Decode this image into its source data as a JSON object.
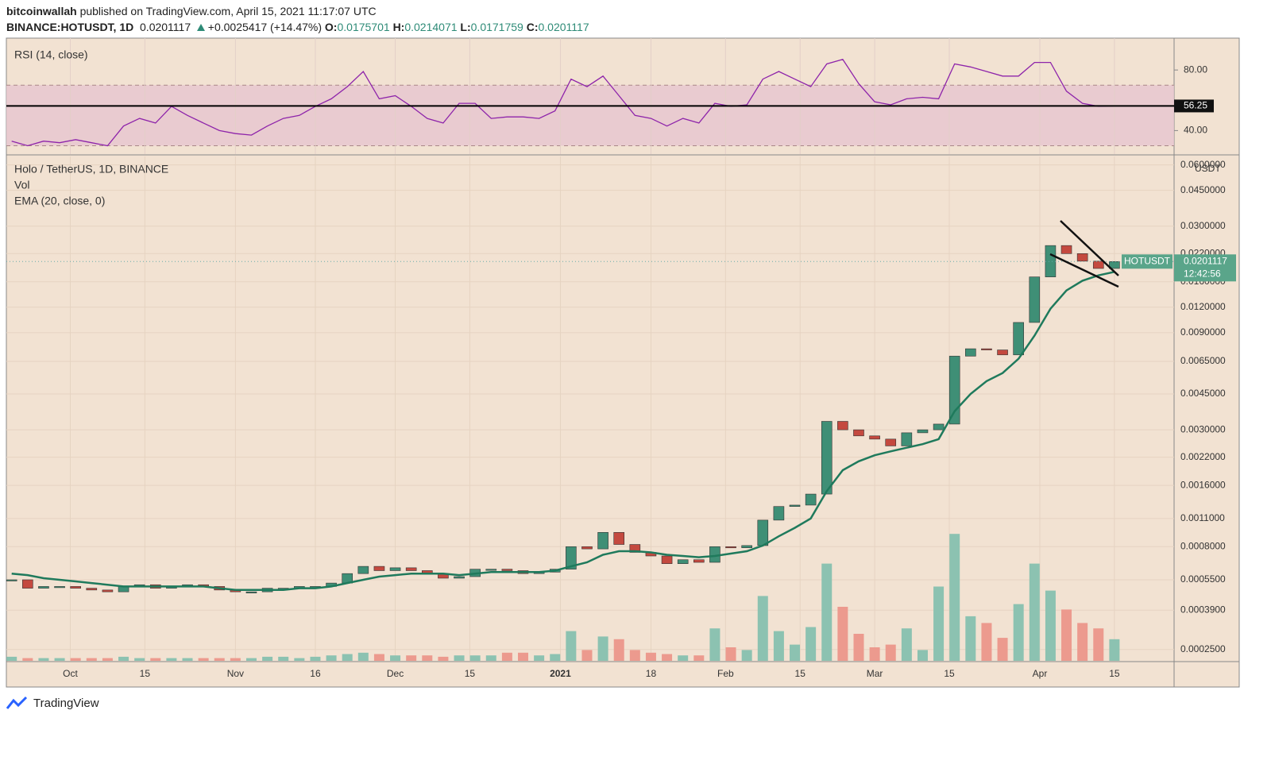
{
  "header": {
    "publisher": "bitcoinwallah",
    "published": "published on TradingView.com, April 15, 2021 11:17:07 UTC",
    "symbol": "BINANCE:HOTUSDT, 1D",
    "change": "+0.0025417 (+14.47%)",
    "open_label": "O:",
    "open": 0.0175701,
    "high_label": "H:",
    "high": 0.0214071,
    "low_label": "L:",
    "low": 0.0171759,
    "close_label": "C:"
  },
  "footer": {
    "brand": "TradingView"
  },
  "chart_data": [
    {
      "type": "line",
      "title": "RSI (14, close)",
      "color": "#8e24aa",
      "x": [
        1,
        4,
        7,
        10,
        13,
        16,
        19,
        22,
        25,
        28,
        31,
        34,
        37,
        40,
        43,
        46,
        49,
        52,
        55,
        58,
        61,
        64,
        67,
        70,
        73,
        76,
        79,
        82,
        85,
        88,
        91,
        94,
        97,
        100,
        103,
        106,
        109,
        112,
        115,
        118,
        121,
        124,
        127,
        130,
        133,
        136,
        139,
        142,
        145,
        148,
        151,
        154,
        157,
        160,
        163,
        166,
        169,
        172,
        175,
        178,
        181,
        184,
        187,
        190,
        193,
        196,
        199,
        202,
        205,
        208
      ],
      "values": [
        33,
        30,
        33,
        32,
        34,
        32,
        30,
        43,
        48,
        45,
        56,
        50,
        45,
        40,
        38,
        37,
        43,
        48,
        50,
        56,
        61,
        69,
        79,
        61,
        63,
        56,
        48,
        45,
        58,
        58,
        48,
        49,
        49,
        48,
        53,
        74,
        69,
        76,
        63,
        50,
        48,
        43,
        48,
        45,
        58,
        56,
        57,
        74,
        79,
        74,
        69,
        84,
        87,
        71,
        59,
        57,
        61,
        62,
        61,
        84,
        82,
        79,
        76,
        76,
        85,
        85,
        66,
        58,
        56,
        56.25
      ],
      "xlim": [
        0,
        219.2
      ],
      "ylim": [
        25,
        100
      ],
      "yticks": [
        {
          "value": 40,
          "label": "40.00"
        },
        {
          "value": 80,
          "label": "80.00"
        }
      ],
      "band": [
        30,
        70
      ],
      "band_color": "#e6c6cf"
    },
    {
      "type": "candlestick",
      "title": "Holo / TetherUS, 1D, BINANCE",
      "symbol": "HOTUSDT",
      "countdown": "12:42:56",
      "y_unit": "USDT",
      "log_scale": true,
      "up_color": "#3f8f76",
      "down_color": "#c4493f",
      "x": [
        1,
        4,
        7,
        10,
        13,
        16,
        19,
        22,
        25,
        28,
        31,
        34,
        37,
        40,
        43,
        46,
        49,
        52,
        55,
        58,
        61,
        64,
        67,
        70,
        73,
        76,
        79,
        82,
        85,
        88,
        91,
        94,
        97,
        100,
        103,
        106,
        109,
        112,
        115,
        118,
        121,
        124,
        127,
        130,
        133,
        136,
        139,
        142,
        145,
        148,
        151,
        154,
        157,
        160,
        163,
        166,
        169,
        172,
        175,
        178,
        181,
        184,
        187,
        190,
        193,
        196,
        199,
        202,
        205,
        208
      ],
      "close": [
        0.00055,
        0.0005,
        0.00051,
        0.00051,
        0.0005,
        0.00049,
        0.00048,
        0.00051,
        0.00052,
        0.0005,
        0.00051,
        0.00052,
        0.00051,
        0.00049,
        0.00048,
        0.00048,
        0.0005,
        0.0005,
        0.00051,
        0.00051,
        0.00053,
        0.00059,
        0.00064,
        0.00061,
        0.00063,
        0.00061,
        0.00059,
        0.00056,
        0.00057,
        0.00062,
        0.00062,
        0.00061,
        0.00059,
        0.0006,
        0.00062,
        0.0008,
        0.00078,
        0.00094,
        0.00082,
        0.00075,
        0.00072,
        0.00066,
        0.00069,
        0.00067,
        0.0008,
        0.00079,
        0.00081,
        0.00108,
        0.00126,
        0.00128,
        0.00145,
        0.0033,
        0.003,
        0.0028,
        0.0027,
        0.0025,
        0.0029,
        0.003,
        0.0032,
        0.0069,
        0.0075,
        0.0074,
        0.007,
        0.0101,
        0.0169,
        0.0241,
        0.022,
        0.0202,
        0.0186,
        0.0201117
      ],
      "ema": {
        "name": "EMA (20, close, 0)",
        "color": "#1f7a5c",
        "values": [
          0.00059,
          0.00058,
          0.00056,
          0.00055,
          0.00054,
          0.00053,
          0.00052,
          0.00051,
          0.00051,
          0.00051,
          0.00051,
          0.00051,
          0.00051,
          0.0005,
          0.00049,
          0.00049,
          0.00049,
          0.00049,
          0.0005,
          0.0005,
          0.00051,
          0.00053,
          0.00055,
          0.00057,
          0.00058,
          0.00059,
          0.00059,
          0.00059,
          0.00058,
          0.00059,
          0.0006,
          0.0006,
          0.0006,
          0.0006,
          0.00061,
          0.00064,
          0.00067,
          0.00073,
          0.00076,
          0.00076,
          0.00075,
          0.00073,
          0.00072,
          0.00071,
          0.00072,
          0.00074,
          0.00076,
          0.00081,
          0.0009,
          0.00099,
          0.0011,
          0.0015,
          0.0019,
          0.0021,
          0.00225,
          0.00235,
          0.00245,
          0.00255,
          0.0027,
          0.0037,
          0.0045,
          0.0052,
          0.0057,
          0.0067,
          0.0087,
          0.0118,
          0.0145,
          0.0162,
          0.0172,
          0.0179
        ]
      },
      "volume": {
        "name": "Vol",
        "up_color": "#8cc2b1",
        "down_color": "#ec9a8e",
        "ylim": [
          0,
          100
        ],
        "values": [
          3,
          2,
          2,
          2,
          2,
          2,
          2,
          3,
          2,
          2,
          2,
          2,
          2,
          2,
          2,
          2,
          3,
          3,
          2,
          3,
          4,
          5,
          6,
          5,
          4,
          4,
          4,
          3,
          4,
          4,
          4,
          6,
          6,
          4,
          5,
          22,
          8,
          18,
          16,
          8,
          6,
          5,
          4,
          4,
          24,
          10,
          8,
          48,
          22,
          12,
          25,
          72,
          40,
          20,
          10,
          12,
          24,
          8,
          55,
          94,
          33,
          28,
          17,
          42,
          72,
          52,
          38,
          28,
          24,
          16
        ]
      },
      "xlim": [
        0,
        219.2
      ],
      "ylim": [
        0.00022,
        0.066
      ],
      "yticks": [
        {
          "value": 0.06,
          "label": "0.0600000"
        },
        {
          "value": 0.045,
          "label": "0.0450000"
        },
        {
          "value": 0.03,
          "label": "0.0300000"
        },
        {
          "value": 0.022,
          "label": "0.0220000"
        },
        {
          "value": 0.016,
          "label": "0.0160000"
        },
        {
          "value": 0.012,
          "label": "0.0120000"
        },
        {
          "value": 0.009,
          "label": "0.0090000"
        },
        {
          "value": 0.0065,
          "label": "0.0065000"
        },
        {
          "value": 0.0045,
          "label": "0.0045000"
        },
        {
          "value": 0.003,
          "label": "0.0030000"
        },
        {
          "value": 0.0022,
          "label": "0.0022000"
        },
        {
          "value": 0.0016,
          "label": "0.0016000"
        },
        {
          "value": 0.0011,
          "label": "0.0011000"
        },
        {
          "value": 0.0008,
          "label": "0.0008000"
        },
        {
          "value": 0.00055,
          "label": "0.0005500"
        },
        {
          "value": 0.00039,
          "label": "0.0003900"
        },
        {
          "value": 0.00025,
          "label": "0.0002500"
        }
      ],
      "xticks": [
        {
          "value": 12,
          "label": "Oct"
        },
        {
          "value": 26,
          "label": "15"
        },
        {
          "value": 43,
          "label": "Nov"
        },
        {
          "value": 58,
          "label": "16"
        },
        {
          "value": 73,
          "label": "Dec"
        },
        {
          "value": 87,
          "label": "15"
        },
        {
          "value": 104,
          "label": "2021"
        },
        {
          "value": 121,
          "label": "18"
        },
        {
          "value": 135,
          "label": "Feb"
        },
        {
          "value": 149,
          "label": "15"
        },
        {
          "value": 163,
          "label": "Mar"
        },
        {
          "value": 177,
          "label": "15"
        },
        {
          "value": 194,
          "label": "Apr"
        },
        {
          "value": 208,
          "label": "15"
        }
      ]
    }
  ]
}
